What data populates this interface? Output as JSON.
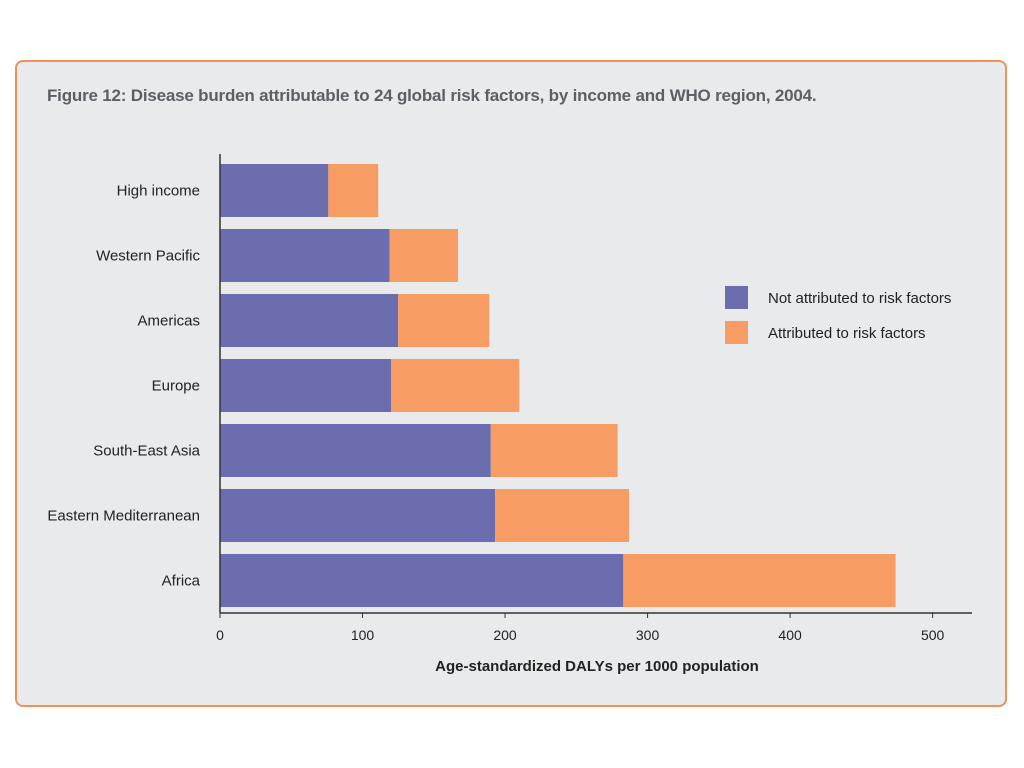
{
  "figure": {
    "title": "Figure 12: Disease burden attributable to 24 global risk factors, by income and WHO region, 2004."
  },
  "colors": {
    "not_attributed": "#6b6dae",
    "attributed": "#f79d64",
    "panel_border": "#f0915a",
    "panel_background": "#e9eaeb",
    "axis": "#333333"
  },
  "chart_data": {
    "type": "bar",
    "orientation": "horizontal",
    "stacked": true,
    "title": "Figure 12: Disease burden attributable to 24 global risk factors, by income and WHO region, 2004.",
    "categories": [
      "High income",
      "Western Pacific",
      "Americas",
      "Europe",
      "South-East Asia",
      "Eastern Mediterranean",
      "Africa"
    ],
    "series": [
      {
        "name": "Not attributed to risk factors",
        "values": [
          76,
          119,
          125,
          120,
          190,
          193,
          283
        ]
      },
      {
        "name": "Attributed to risk factors",
        "values": [
          35,
          48,
          64,
          90,
          89,
          94,
          191
        ]
      }
    ],
    "xlabel": "Age-standardized DALYs per 1000 population",
    "ylabel": "",
    "xlim": [
      0,
      515
    ],
    "xticks": [
      0,
      100,
      200,
      300,
      400,
      500
    ],
    "grid": false,
    "legend_position": "right"
  }
}
